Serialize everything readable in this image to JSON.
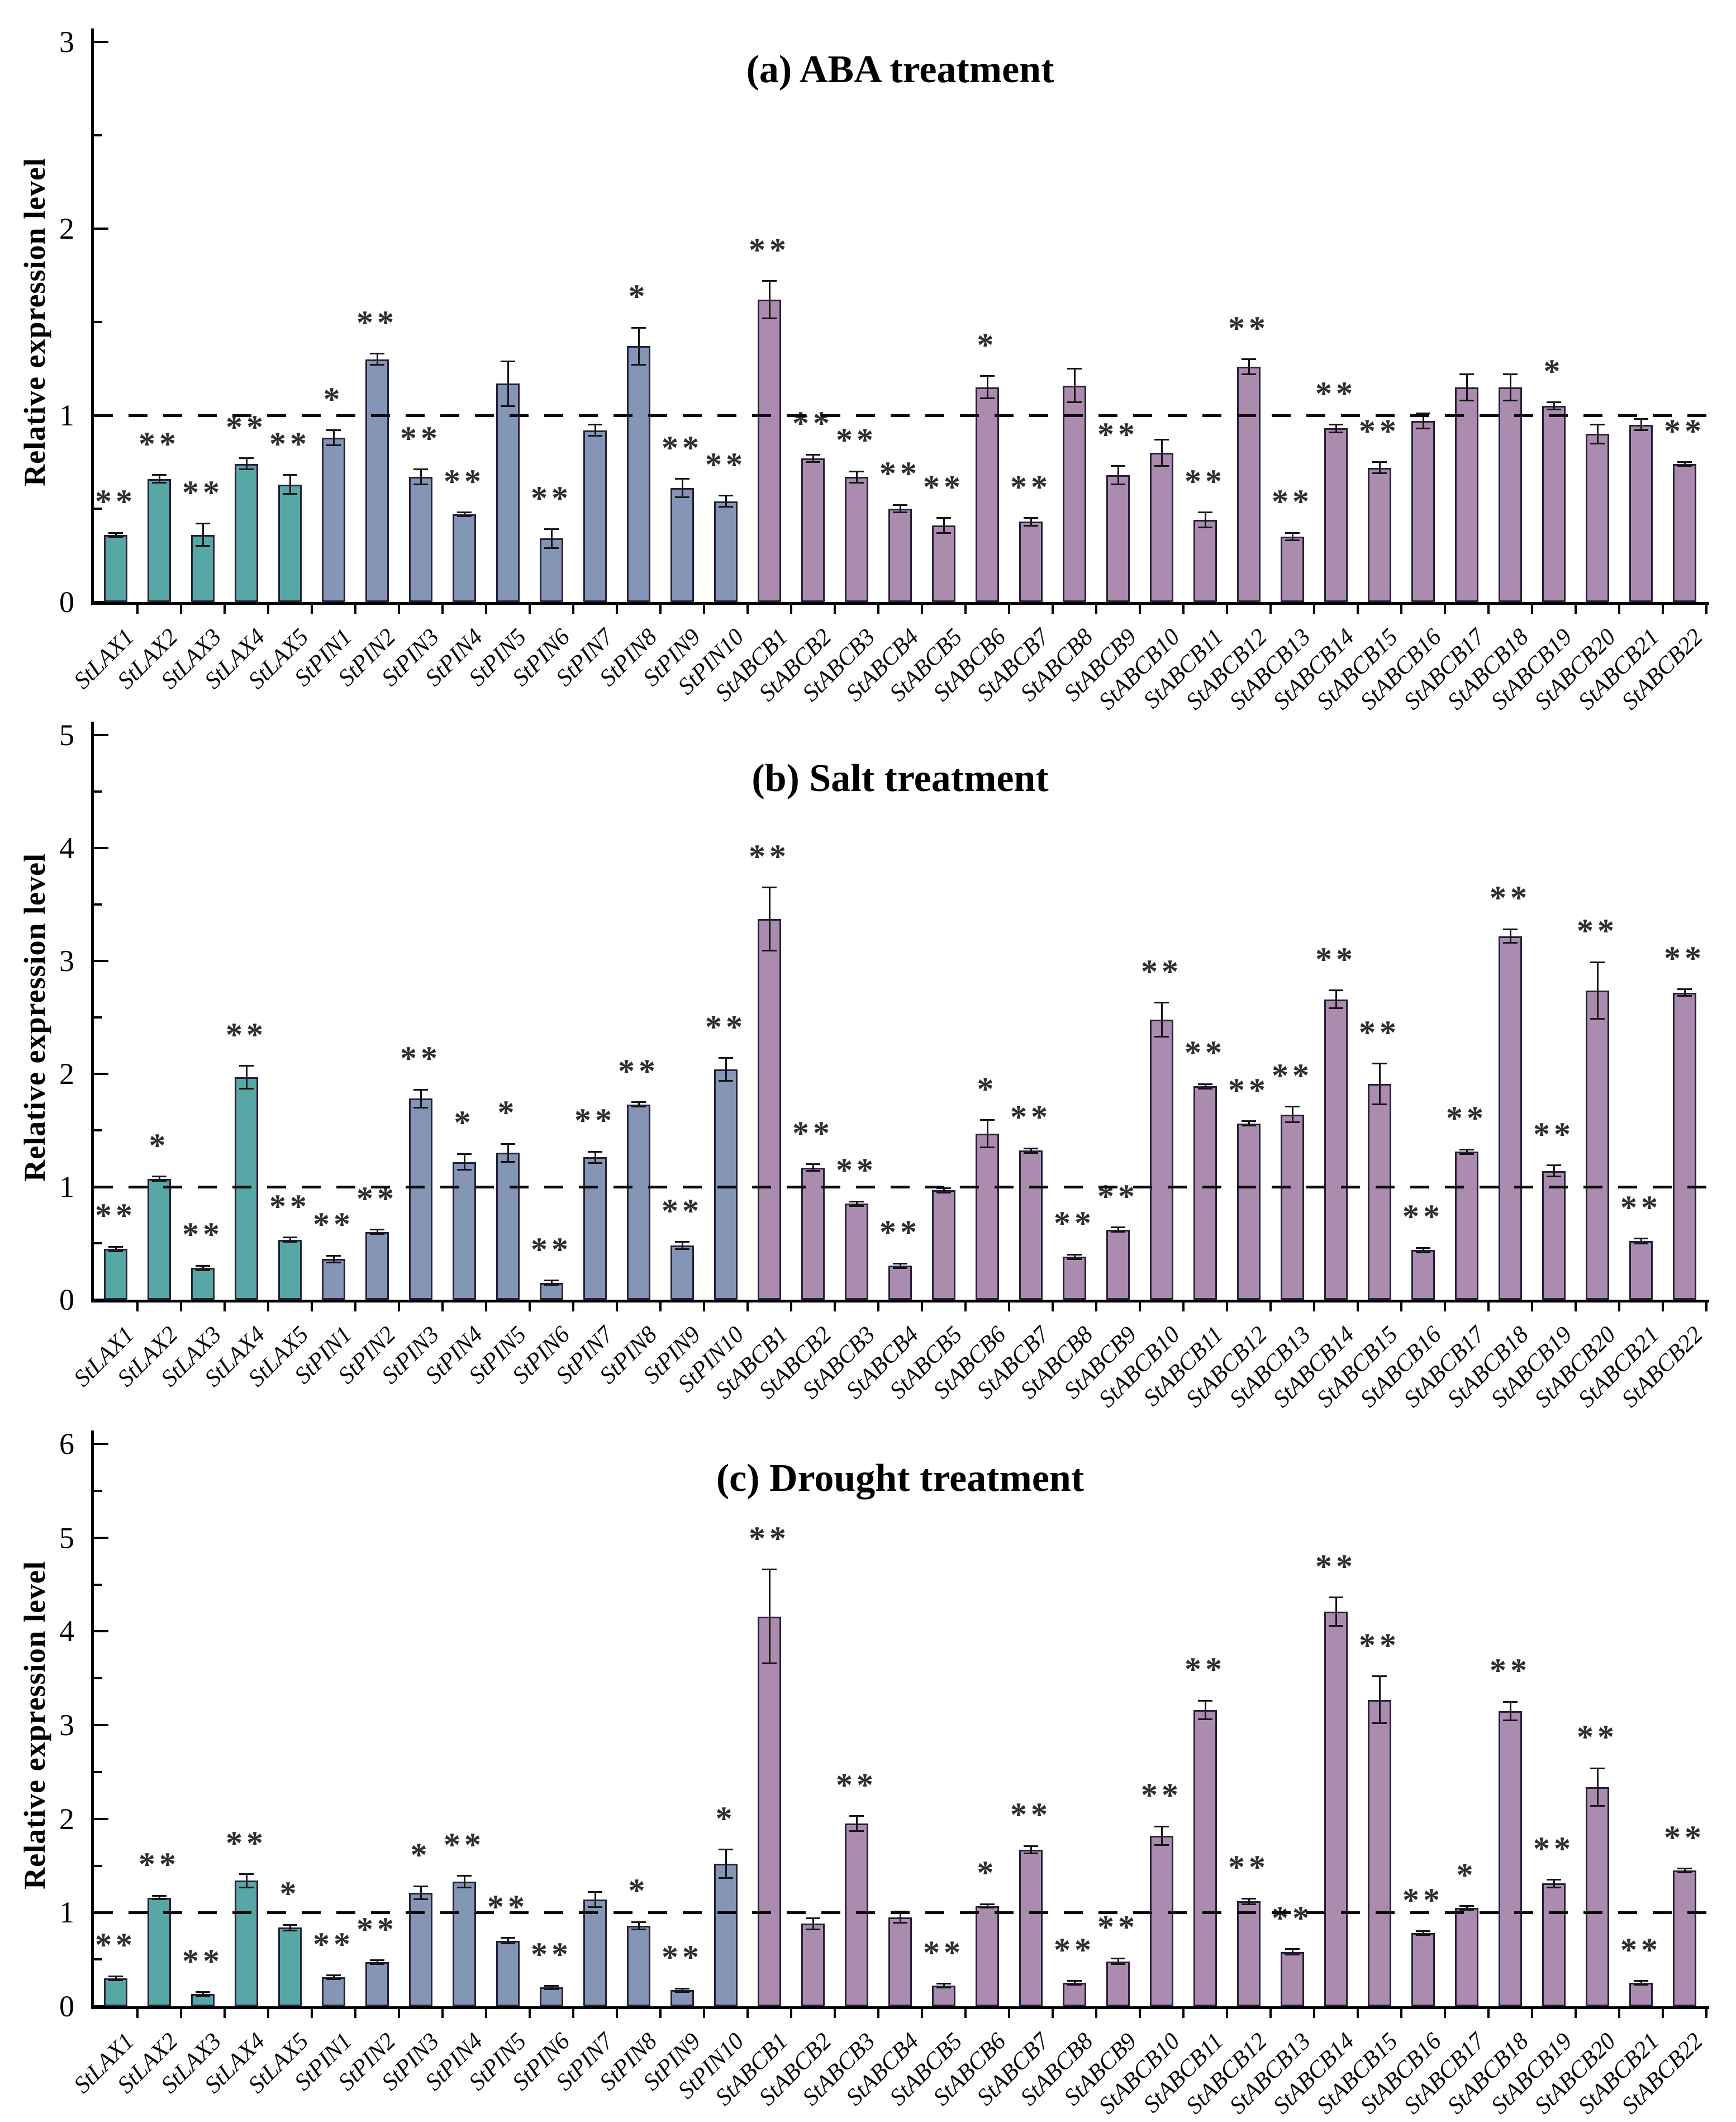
{
  "styles": {
    "group_colors": [
      {
        "prefix": "StLAX",
        "color": "#57A7A4"
      },
      {
        "prefix": "StPIN",
        "color": "#8495B6"
      },
      {
        "prefix": "StABCB",
        "color": "#AC8CAE"
      }
    ],
    "bar_outline": "#27203A",
    "axis_color": "#000000",
    "error_bar_color": "#141414",
    "significance_color": "#2E2E2E",
    "reference_line_style": "dashed"
  },
  "chart_data": [
    {
      "type": "bar",
      "panel": "a",
      "title": "(a) ABA treatment",
      "ylabel": "Relative expression level",
      "xlabel": "",
      "grid": "off",
      "legend": "none",
      "ylim": [
        0,
        3
      ],
      "yticks_major": [
        0,
        1,
        2,
        3
      ],
      "yticks_minor": [
        0.5,
        1.5,
        2.5
      ],
      "reference_line_y": 1,
      "categories": [
        "StLAX1",
        "StLAX2",
        "StLAX3",
        "StLAX4",
        "StLAX5",
        "StPIN1",
        "StPIN2",
        "StPIN3",
        "StPIN4",
        "StPIN5",
        "StPIN6",
        "StPIN7",
        "StPIN8",
        "StPIN9",
        "StPIN10",
        "StABCB1",
        "StABCB2",
        "StABCB3",
        "StABCB4",
        "StABCB5",
        "StABCB6",
        "StABCB7",
        "StABCB8",
        "StABCB9",
        "StABCB10",
        "StABCB11",
        "StABCB12",
        "StABCB13",
        "StABCB14",
        "StABCB15",
        "StABCB16",
        "StABCB17",
        "StABCB18",
        "StABCB19",
        "StABCB20",
        "StABCB21",
        "StABCB22"
      ],
      "values": [
        0.36,
        0.66,
        0.36,
        0.74,
        0.63,
        0.88,
        1.3,
        0.67,
        0.47,
        1.17,
        0.34,
        0.92,
        1.37,
        0.61,
        0.54,
        1.62,
        0.77,
        0.67,
        0.5,
        0.41,
        1.15,
        0.43,
        1.16,
        0.68,
        0.8,
        0.44,
        1.26,
        0.35,
        0.93,
        0.72,
        0.97,
        1.15,
        1.15,
        1.05,
        0.9,
        0.95,
        0.74
      ],
      "errors": [
        0.01,
        0.02,
        0.06,
        0.03,
        0.05,
        0.04,
        0.03,
        0.04,
        0.01,
        0.12,
        0.05,
        0.03,
        0.1,
        0.05,
        0.03,
        0.1,
        0.02,
        0.03,
        0.02,
        0.04,
        0.06,
        0.02,
        0.09,
        0.05,
        0.07,
        0.04,
        0.04,
        0.02,
        0.02,
        0.03,
        0.04,
        0.07,
        0.07,
        0.02,
        0.05,
        0.03,
        0.01
      ],
      "significance": [
        "**",
        "**",
        "**",
        "**",
        "**",
        "*",
        "**",
        "**",
        "**",
        "",
        "**",
        "",
        "*",
        "**",
        "**",
        "**",
        "**",
        "**",
        "**",
        "**",
        "*",
        "**",
        "",
        "**",
        "",
        "**",
        "**",
        "**",
        "**",
        "**",
        "",
        "",
        "",
        "*",
        "",
        "",
        "**"
      ]
    },
    {
      "type": "bar",
      "panel": "b",
      "title": "(b) Salt treatment",
      "ylabel": "Relative expression level",
      "xlabel": "",
      "grid": "off",
      "legend": "none",
      "ylim": [
        0,
        5
      ],
      "yticks_major": [
        0,
        1,
        2,
        3,
        4,
        5
      ],
      "yticks_minor": [
        0.5,
        1.5,
        2.5,
        3.5,
        4.5
      ],
      "reference_line_y": 1,
      "categories": [
        "StLAX1",
        "StLAX2",
        "StLAX3",
        "StLAX4",
        "StLAX5",
        "StPIN1",
        "StPIN2",
        "StPIN3",
        "StPIN4",
        "StPIN5",
        "StPIN6",
        "StPIN7",
        "StPIN8",
        "StPIN9",
        "StPIN10",
        "StABCB1",
        "StABCB2",
        "StABCB3",
        "StABCB4",
        "StABCB5",
        "StABCB6",
        "StABCB7",
        "StABCB8",
        "StABCB9",
        "StABCB10",
        "StABCB11",
        "StABCB12",
        "StABCB13",
        "StABCB14",
        "StABCB15",
        "StABCB16",
        "StABCB17",
        "StABCB18",
        "StABCB19",
        "StABCB20",
        "StABCB21",
        "StABCB22"
      ],
      "values": [
        0.45,
        1.07,
        0.28,
        1.97,
        0.53,
        0.36,
        0.6,
        1.78,
        1.22,
        1.3,
        0.15,
        1.26,
        1.73,
        0.48,
        2.04,
        3.37,
        1.17,
        0.85,
        0.3,
        0.97,
        1.47,
        1.32,
        0.38,
        0.62,
        2.48,
        1.89,
        1.56,
        1.64,
        2.66,
        1.91,
        0.44,
        1.31,
        3.22,
        1.14,
        2.74,
        0.52,
        2.72
      ],
      "errors": [
        0.02,
        0.02,
        0.02,
        0.1,
        0.02,
        0.03,
        0.02,
        0.08,
        0.07,
        0.08,
        0.02,
        0.05,
        0.02,
        0.03,
        0.1,
        0.28,
        0.03,
        0.02,
        0.02,
        0.02,
        0.12,
        0.02,
        0.02,
        0.02,
        0.15,
        0.02,
        0.02,
        0.07,
        0.08,
        0.18,
        0.02,
        0.02,
        0.06,
        0.05,
        0.25,
        0.02,
        0.03
      ],
      "significance": [
        "**",
        "*",
        "**",
        "**",
        "**",
        "**",
        "**",
        "**",
        "*",
        "*",
        "**",
        "**",
        "**",
        "**",
        "**",
        "**",
        "**",
        "**",
        "**",
        "",
        "*",
        "**",
        "**",
        "**",
        "**",
        "**",
        "**",
        "**",
        "**",
        "**",
        "**",
        "**",
        "**",
        "**",
        "**",
        "**",
        "**"
      ]
    },
    {
      "type": "bar",
      "panel": "c",
      "title": "(c) Drought treatment",
      "ylabel": "Relative expression level",
      "xlabel": "",
      "grid": "off",
      "legend": "none",
      "ylim": [
        0,
        6
      ],
      "yticks_major": [
        0,
        1,
        2,
        3,
        4,
        5,
        6
      ],
      "yticks_minor": [
        0.5,
        1.5,
        2.5,
        3.5,
        4.5,
        5.5
      ],
      "reference_line_y": 1,
      "categories": [
        "StLAX1",
        "StLAX2",
        "StLAX3",
        "StLAX4",
        "StLAX5",
        "StPIN1",
        "StPIN2",
        "StPIN3",
        "StPIN4",
        "StPIN5",
        "StPIN6",
        "StPIN7",
        "StPIN8",
        "StPIN9",
        "StPIN10",
        "StABCB1",
        "StABCB2",
        "StABCB3",
        "StABCB4",
        "StABCB5",
        "StABCB6",
        "StABCB7",
        "StABCB8",
        "StABCB9",
        "StABCB10",
        "StABCB11",
        "StABCB12",
        "StABCB13",
        "StABCB14",
        "StABCB15",
        "StABCB16",
        "StABCB17",
        "StABCB18",
        "StABCB19",
        "StABCB20",
        "StABCB21",
        "StABCB22"
      ],
      "values": [
        0.3,
        1.16,
        0.13,
        1.34,
        0.84,
        0.31,
        0.47,
        1.21,
        1.33,
        0.7,
        0.2,
        1.14,
        0.86,
        0.17,
        1.52,
        4.16,
        0.88,
        1.95,
        0.95,
        0.22,
        1.07,
        1.67,
        0.25,
        0.48,
        1.82,
        3.16,
        1.12,
        0.58,
        4.21,
        3.27,
        0.78,
        1.05,
        3.15,
        1.31,
        2.34,
        0.25,
        1.45
      ],
      "errors": [
        0.02,
        0.02,
        0.02,
        0.07,
        0.03,
        0.02,
        0.02,
        0.07,
        0.06,
        0.03,
        0.02,
        0.08,
        0.04,
        0.02,
        0.15,
        0.5,
        0.06,
        0.08,
        0.06,
        0.02,
        0.02,
        0.04,
        0.02,
        0.03,
        0.1,
        0.1,
        0.03,
        0.03,
        0.15,
        0.25,
        0.02,
        0.02,
        0.1,
        0.04,
        0.2,
        0.02,
        0.02
      ],
      "significance": [
        "**",
        "**",
        "**",
        "**",
        "*",
        "**",
        "**",
        "*",
        "**",
        "**",
        "**",
        "",
        "*",
        "**",
        "*",
        "**",
        "",
        "**",
        "",
        "**",
        "*",
        "**",
        "**",
        "**",
        "**",
        "**",
        "**",
        "**",
        "**",
        "**",
        "**",
        "*",
        "**",
        "**",
        "**",
        "**",
        "**"
      ]
    }
  ]
}
